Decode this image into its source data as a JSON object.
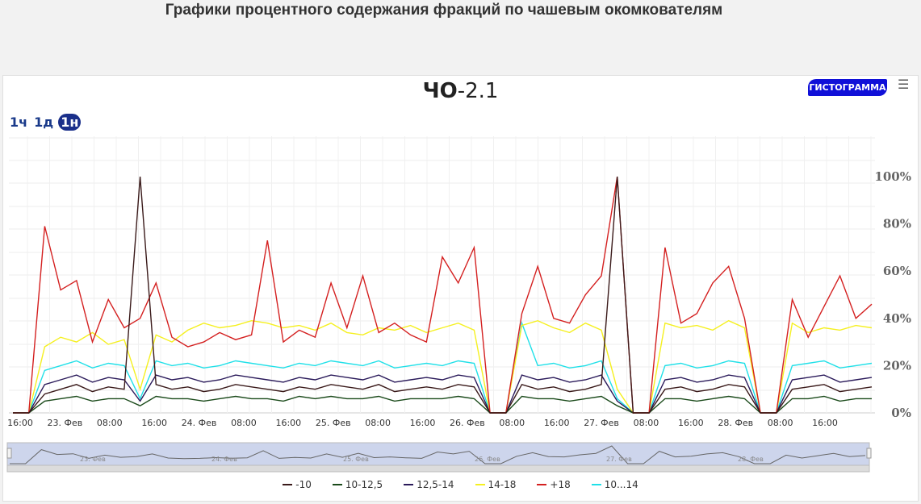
{
  "page_title": "Графики процентного содержания фракций по чашевым окомкователям",
  "chart": {
    "title_bold": "ЧО",
    "title_rest": "-2.1",
    "histogram_button": "ГИСТОГРАММА",
    "range_buttons": [
      "1ч",
      "1д",
      "1н"
    ],
    "active_range": "1н",
    "menu_icon": "hamburger-menu-icon"
  },
  "colors": {
    "-10": "#3a1a1a",
    "10-12,5": "#1a4a1a",
    "12,5-14": "#2a1a5a",
    "14-18": "#f5f020",
    "+18": "#d42020",
    "10...14": "#20e0e8"
  },
  "chart_data": {
    "type": "line",
    "x_ticks": [
      "16:00",
      "23. Фев",
      "08:00",
      "16:00",
      "24. Фев",
      "08:00",
      "16:00",
      "25. Фев",
      "08:00",
      "16:00",
      "26. Фев",
      "08:00",
      "16:00",
      "27. Фев",
      "08:00",
      "16:00",
      "28. Фев",
      "08:00",
      "16:00"
    ],
    "navigator_labels": [
      "23. Фев",
      "24. Фев",
      "25. Фев",
      "26. Фев",
      "27. Фев",
      "28. Фев"
    ],
    "y_ticks": [
      "0%",
      "20%",
      "40%",
      "60%",
      "80%",
      "100%"
    ],
    "ylim": [
      0,
      100
    ],
    "legend_position": "bottom",
    "series": [
      {
        "name": "-10",
        "values": [
          0,
          0,
          8,
          10,
          12,
          9,
          11,
          10,
          100,
          12,
          10,
          11,
          9,
          10,
          12,
          11,
          10,
          9,
          11,
          10,
          12,
          11,
          10,
          12,
          9,
          10,
          11,
          10,
          12,
          11,
          0,
          0,
          12,
          10,
          11,
          9,
          10,
          12,
          100,
          0,
          0,
          10,
          11,
          9,
          10,
          12,
          11,
          0,
          0,
          10,
          11,
          12,
          9,
          10,
          11
        ]
      },
      {
        "name": "10-12,5",
        "values": [
          0,
          0,
          5,
          6,
          7,
          5,
          6,
          6,
          3,
          7,
          6,
          6,
          5,
          6,
          7,
          6,
          6,
          5,
          7,
          6,
          7,
          6,
          6,
          7,
          5,
          6,
          6,
          6,
          7,
          6,
          0,
          0,
          7,
          6,
          6,
          5,
          6,
          7,
          3,
          0,
          0,
          6,
          6,
          5,
          6,
          7,
          6,
          0,
          0,
          6,
          6,
          7,
          5,
          6,
          6
        ]
      },
      {
        "name": "12,5-14",
        "values": [
          0,
          0,
          12,
          14,
          16,
          13,
          15,
          14,
          5,
          16,
          14,
          15,
          13,
          14,
          16,
          15,
          14,
          13,
          15,
          14,
          16,
          15,
          14,
          16,
          13,
          14,
          15,
          14,
          16,
          15,
          0,
          0,
          16,
          14,
          15,
          13,
          14,
          16,
          5,
          0,
          0,
          14,
          15,
          13,
          14,
          16,
          15,
          0,
          0,
          14,
          15,
          16,
          13,
          14,
          15
        ]
      },
      {
        "name": "14-18",
        "values": [
          0,
          0,
          28,
          32,
          30,
          34,
          29,
          31,
          10,
          33,
          30,
          35,
          38,
          36,
          37,
          39,
          38,
          36,
          37,
          35,
          38,
          34,
          33,
          36,
          35,
          37,
          34,
          36,
          38,
          35,
          0,
          0,
          37,
          39,
          36,
          34,
          38,
          35,
          10,
          0,
          0,
          38,
          36,
          37,
          35,
          39,
          36,
          0,
          0,
          38,
          34,
          36,
          35,
          37,
          36
        ]
      },
      {
        "name": "+18",
        "values": [
          0,
          0,
          79,
          52,
          56,
          30,
          48,
          36,
          40,
          55,
          32,
          28,
          30,
          34,
          31,
          33,
          73,
          30,
          35,
          32,
          55,
          36,
          58,
          34,
          38,
          33,
          30,
          66,
          55,
          70,
          0,
          0,
          42,
          62,
          40,
          38,
          50,
          58,
          100,
          0,
          0,
          70,
          38,
          42,
          55,
          62,
          40,
          0,
          0,
          48,
          32,
          45,
          58,
          40,
          46
        ]
      },
      {
        "name": "10...14",
        "values": [
          0,
          0,
          18,
          20,
          22,
          19,
          21,
          20,
          6,
          22,
          20,
          21,
          19,
          20,
          22,
          21,
          20,
          19,
          21,
          20,
          22,
          21,
          20,
          22,
          19,
          20,
          21,
          20,
          22,
          21,
          0,
          0,
          38,
          20,
          21,
          19,
          20,
          22,
          6,
          0,
          0,
          20,
          21,
          19,
          20,
          22,
          21,
          0,
          0,
          20,
          21,
          22,
          19,
          20,
          21
        ]
      }
    ]
  }
}
